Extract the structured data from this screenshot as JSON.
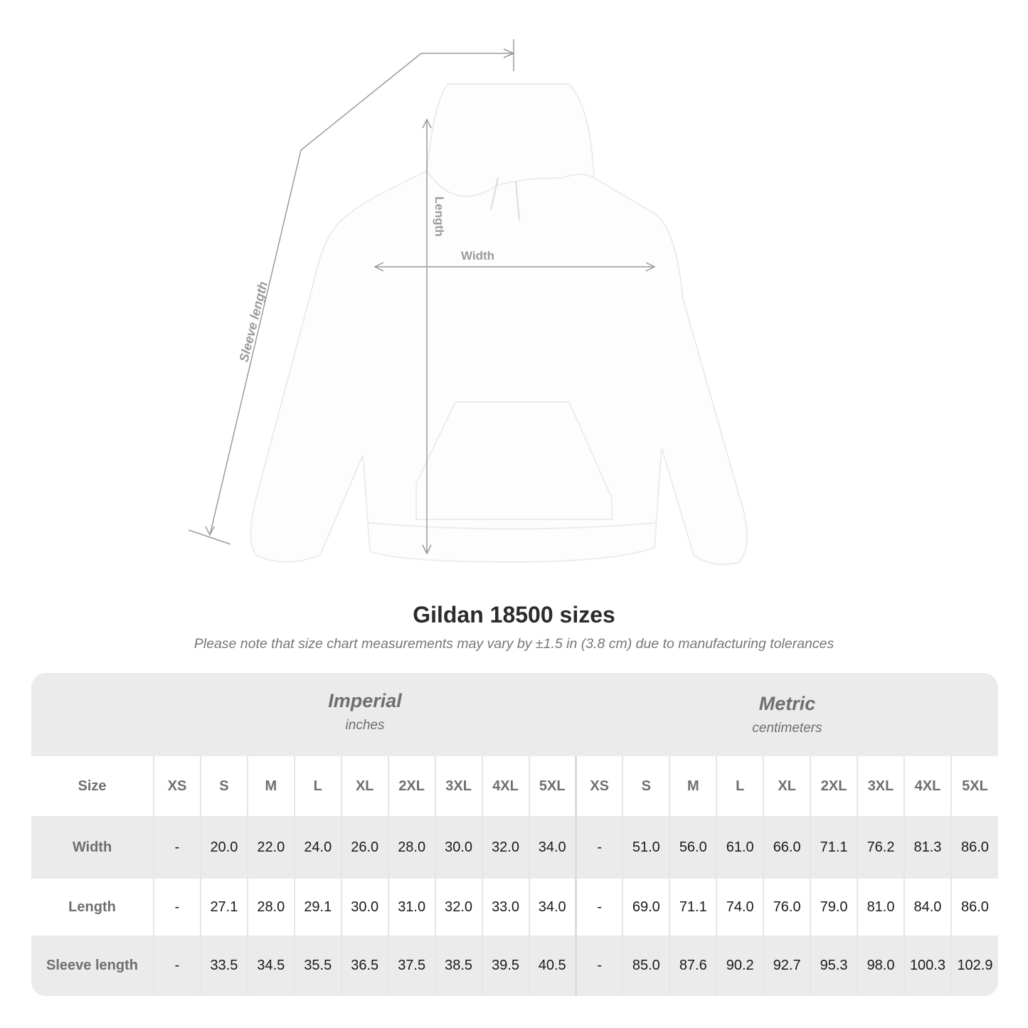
{
  "diagram": {
    "sleeve_label": "Sleeve length",
    "length_label": "Length",
    "width_label": "Width",
    "line_color": "#9a9a9a"
  },
  "title": "Gildan 18500 sizes",
  "subtitle": "Please note that size chart measurements may vary by ±1.5 in (3.8 cm) due to manufacturing tolerances",
  "imperial": {
    "name": "Imperial",
    "unit": "inches"
  },
  "metric": {
    "name": "Metric",
    "unit": "centimeters"
  },
  "table": {
    "size_label": "Size",
    "sizes": [
      "XS",
      "S",
      "M",
      "L",
      "XL",
      "2XL",
      "3XL",
      "4XL",
      "5XL"
    ],
    "rows": [
      {
        "label": "Width",
        "imperial": [
          "-",
          "20.0",
          "22.0",
          "24.0",
          "26.0",
          "28.0",
          "30.0",
          "32.0",
          "34.0"
        ],
        "metric": [
          "-",
          "51.0",
          "56.0",
          "61.0",
          "66.0",
          "71.1",
          "76.2",
          "81.3",
          "86.0"
        ]
      },
      {
        "label": "Length",
        "imperial": [
          "-",
          "27.1",
          "28.0",
          "29.1",
          "30.0",
          "31.0",
          "32.0",
          "33.0",
          "34.0"
        ],
        "metric": [
          "-",
          "69.0",
          "71.1",
          "74.0",
          "76.0",
          "79.0",
          "81.0",
          "84.0",
          "86.0"
        ]
      },
      {
        "label": "Sleeve length",
        "imperial": [
          "-",
          "33.5",
          "34.5",
          "35.5",
          "36.5",
          "37.5",
          "38.5",
          "39.5",
          "40.5"
        ],
        "metric": [
          "-",
          "85.0",
          "87.6",
          "90.2",
          "92.7",
          "95.3",
          "98.0",
          "100.3",
          "102.9"
        ]
      }
    ]
  }
}
